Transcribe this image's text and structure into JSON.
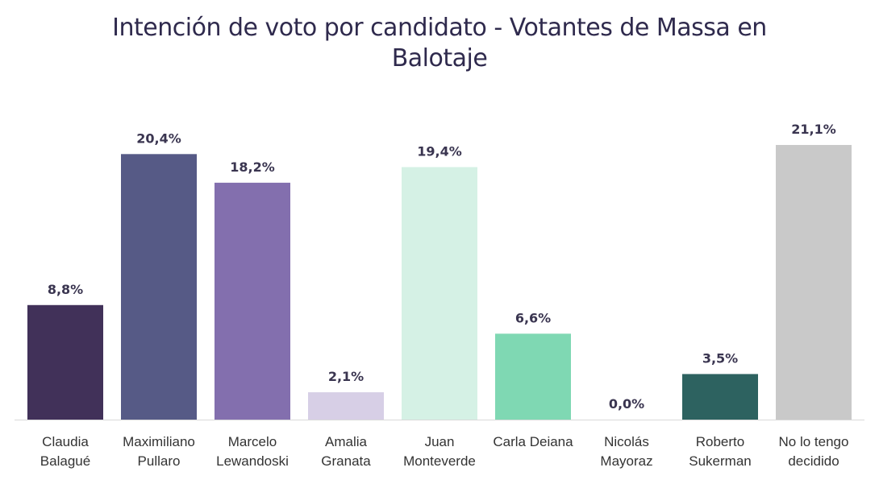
{
  "chart_data": {
    "type": "bar",
    "title": "Intención de voto por candidato - Votantes de Massa en Balotaje",
    "title_lines": [
      "Intención de voto por candidato - Votantes de Massa en",
      "Balotaje"
    ],
    "categories": [
      [
        "Claudia",
        "Balagué"
      ],
      [
        "Maximiliano",
        "Pullaro"
      ],
      [
        "Marcelo",
        "Lewandoski"
      ],
      [
        "Amalia",
        "Granata"
      ],
      [
        "Juan",
        "Monteverde"
      ],
      [
        "Carla Deiana"
      ],
      [
        "Nicolás",
        "Mayoraz"
      ],
      [
        "Roberto",
        "Sukerman"
      ],
      [
        "No lo tengo",
        "decidido"
      ]
    ],
    "values": [
      8.8,
      20.4,
      18.2,
      2.1,
      19.4,
      6.6,
      0.0,
      3.5,
      21.1
    ],
    "value_labels": [
      "8,8%",
      "20,4%",
      "18,2%",
      "2,1%",
      "19,4%",
      "6,6%",
      "0,0%",
      "3,5%",
      "21,1%"
    ],
    "colors": [
      "#413159",
      "#565a86",
      "#836fae",
      "#d7cfe6",
      "#d5f1e5",
      "#7fd8b3",
      "#ffffff",
      "#2d6260",
      "#c9c9c9"
    ],
    "ylim": [
      0,
      21.1
    ],
    "xlabel": "",
    "ylabel": "",
    "grid": false,
    "legend": "none"
  }
}
